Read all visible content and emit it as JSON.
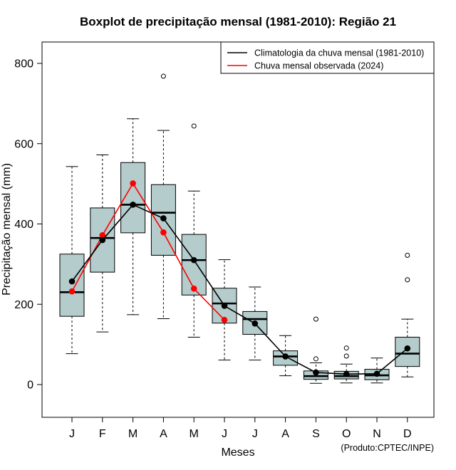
{
  "chart_data": {
    "type": "boxplot",
    "title": "Boxplot de precipitação mensal (1981-2010): Região 21",
    "xlabel": "Meses",
    "ylabel": "Precipitação mensal (mm)",
    "ylim": [
      -80,
      850
    ],
    "yticks": [
      0,
      200,
      400,
      600,
      800
    ],
    "categories": [
      "J",
      "F",
      "M",
      "A",
      "M",
      "J",
      "J",
      "A",
      "S",
      "O",
      "N",
      "D"
    ],
    "boxes": [
      {
        "whisker_low": 77,
        "q1": 170,
        "median": 230,
        "q3": 325,
        "whisker_high": 543,
        "outliers": []
      },
      {
        "whisker_low": 131,
        "q1": 280,
        "median": 365,
        "q3": 440,
        "whisker_high": 572,
        "outliers": []
      },
      {
        "whisker_low": 174,
        "q1": 378,
        "median": 448,
        "q3": 553,
        "whisker_high": 662,
        "outliers": []
      },
      {
        "whisker_low": 164,
        "q1": 322,
        "median": 428,
        "q3": 498,
        "whisker_high": 633,
        "outliers": [
          768
        ]
      },
      {
        "whisker_low": 118,
        "q1": 223,
        "median": 310,
        "q3": 374,
        "whisker_high": 482,
        "outliers": [
          644
        ]
      },
      {
        "whisker_low": 61,
        "q1": 153,
        "median": 202,
        "q3": 240,
        "whisker_high": 311,
        "outliers": []
      },
      {
        "whisker_low": 61,
        "q1": 125,
        "median": 163,
        "q3": 182,
        "whisker_high": 243,
        "outliers": []
      },
      {
        "whisker_low": 22,
        "q1": 48,
        "median": 70,
        "q3": 84,
        "whisker_high": 122,
        "outliers": []
      },
      {
        "whisker_low": 3,
        "q1": 13,
        "median": 21,
        "q3": 34,
        "whisker_high": 54,
        "outliers": [
          64,
          163
        ]
      },
      {
        "whisker_low": 4,
        "q1": 14,
        "median": 21,
        "q3": 33,
        "whisker_high": 51,
        "outliers": [
          71,
          91
        ]
      },
      {
        "whisker_low": 4,
        "q1": 12,
        "median": 23,
        "q3": 38,
        "whisker_high": 66,
        "outliers": []
      },
      {
        "whisker_low": 19,
        "q1": 45,
        "median": 77,
        "q3": 118,
        "whisker_high": 163,
        "outliers": [
          261,
          322
        ]
      }
    ],
    "series": [
      {
        "name": "Climatologia da chuva mensal (1981-2010)",
        "color": "#000000",
        "values": [
          257,
          360,
          448,
          414,
          310,
          196,
          152,
          70,
          30,
          26,
          27,
          90
        ]
      },
      {
        "name": "Chuva mensal observada (2024)",
        "color": "#ff0000",
        "values": [
          232,
          372,
          501,
          379,
          239,
          161,
          null,
          null,
          null,
          null,
          null,
          null
        ]
      }
    ],
    "legend_position": "top-right",
    "box_fill": "#b4cccc",
    "credit": "(Produto:CPTEC/INPE)"
  }
}
